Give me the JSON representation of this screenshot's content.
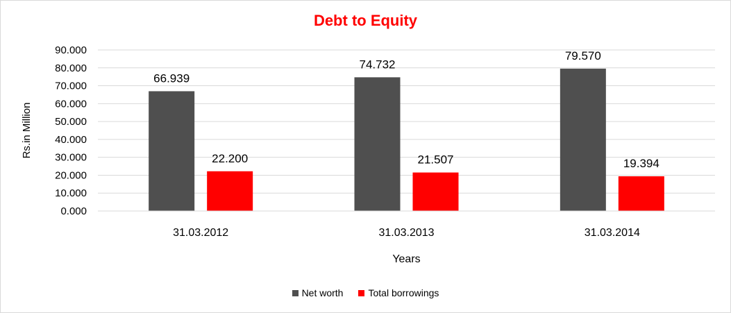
{
  "chart_data": {
    "type": "bar",
    "title": "Debt to Equity",
    "xlabel": "Years",
    "ylabel": "Rs.in Million",
    "categories": [
      "31.03.2012",
      "31.03.2013",
      "31.03.2014"
    ],
    "series": [
      {
        "name": "Net worth",
        "values": [
          66.939,
          74.732,
          79.57
        ],
        "color": "#4f4f4f"
      },
      {
        "name": "Total borrowings",
        "values": [
          22.2,
          21.507,
          19.394
        ],
        "color": "#ff0000"
      }
    ],
    "ylim": [
      0,
      90
    ],
    "yticks": [
      "0.000",
      "10.000",
      "20.000",
      "30.000",
      "40.000",
      "50.000",
      "60.000",
      "70.000",
      "80.000",
      "90.000"
    ],
    "data_labels": [
      [
        "66.939",
        "74.732",
        "79.570"
      ],
      [
        "22.200",
        "21.507",
        "19.394"
      ]
    ],
    "grid": true,
    "legend_position": "bottom",
    "title_color": "#ff0000"
  }
}
